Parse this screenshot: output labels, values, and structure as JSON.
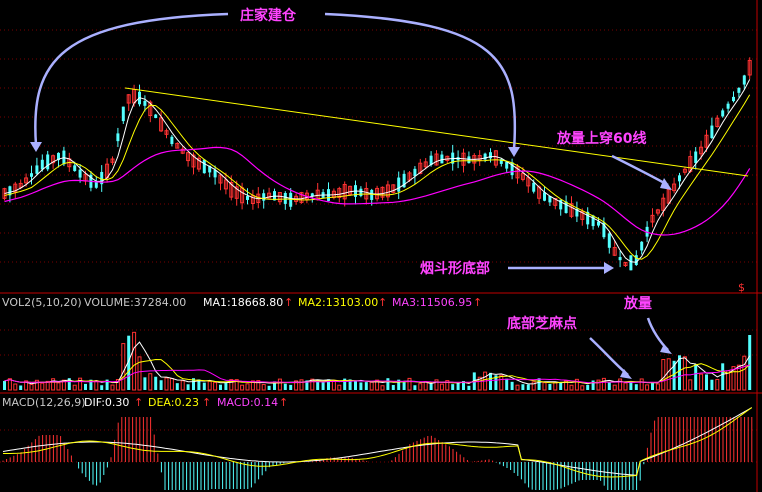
{
  "chart_data": [
    {
      "type": "candlestick",
      "panel": "price",
      "axis_badge": "$",
      "colors": {
        "up": "#ff3232",
        "down": "#54ffff",
        "ma_short": "#ffffff",
        "ma_mid": "#ffff00",
        "ma_long": "#ff00ff",
        "trend_line": "#ffff00",
        "arrow": "#aab0ff",
        "annotation": "#ff44ff"
      },
      "annotations": [
        {
          "text": "庄家建仓"
        },
        {
          "text": "放量上穿60线"
        },
        {
          "text": "烟斗形底部"
        }
      ]
    },
    {
      "type": "bar",
      "panel": "volume",
      "header": {
        "title": "VOL2(5,10,20)",
        "volume": "VOLUME:37284.00",
        "ma1": "MA1:18668.80",
        "ma2": "MA2:13103.00",
        "ma3": "MA3:11506.95",
        "arrow": "↑"
      },
      "annotations": [
        {
          "text": "底部芝麻点"
        },
        {
          "text": "放量"
        }
      ]
    },
    {
      "type": "bar",
      "panel": "macd",
      "header": {
        "title": "MACD(12,26,9)",
        "dif": "DIF:0.30",
        "dea": "DEA:0.23",
        "macd": "MACD:0.14",
        "arrow": "↑"
      }
    }
  ]
}
